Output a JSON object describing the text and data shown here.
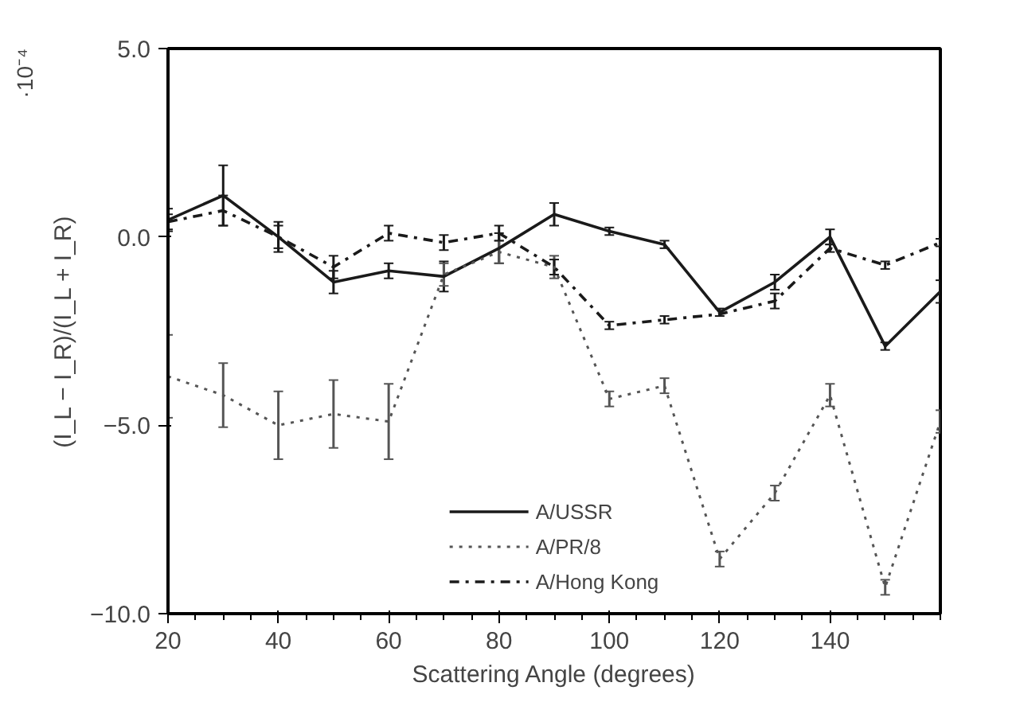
{
  "chart_data": {
    "type": "line",
    "xlabel": "Scattering Angle (degrees)",
    "ylabel": "(I_L − I_R)/(I_L + I_R)",
    "annotations": [
      "·10⁻⁴"
    ],
    "x": [
      20,
      30,
      40,
      50,
      60,
      70,
      80,
      90,
      100,
      110,
      120,
      130,
      140,
      150,
      160
    ],
    "xlim": [
      20,
      160
    ],
    "xticks": [
      20,
      40,
      60,
      80,
      100,
      120,
      140
    ],
    "ylim": [
      -10,
      5
    ],
    "yticks": [
      {
        "value": 5,
        "label": "5.0"
      },
      {
        "value": 0,
        "label": "0.0"
      },
      {
        "value": -5,
        "label": "−5.0"
      },
      {
        "value": -10,
        "label": "−10.0"
      }
    ],
    "grid": false,
    "legend": "bottom",
    "marker": "none",
    "series": [
      {
        "name": "A/USSR",
        "color": "#1a1a1a",
        "line_style": "solid",
        "values": [
          0.45,
          1.1,
          0.0,
          -1.2,
          -0.9,
          -1.05,
          -0.3,
          0.6,
          0.15,
          -0.2,
          -2.0,
          -1.2,
          0.0,
          -2.9,
          -1.45
        ],
        "errors": [
          0.3,
          0.8,
          0.4,
          0.3,
          0.2,
          0.4,
          0.4,
          0.3,
          0.1,
          0.1,
          0.1,
          0.2,
          0.2,
          0.1,
          0.3
        ]
      },
      {
        "name": "A/PR/8",
        "color": "#555555",
        "line_style": "dotted",
        "values": [
          -3.7,
          -4.2,
          -5.0,
          -4.7,
          -4.9,
          -1.0,
          -0.4,
          -0.8,
          -4.3,
          -3.95,
          -8.55,
          -6.8,
          -4.2,
          -9.3,
          -4.9
        ],
        "errors": [
          1.1,
          0.85,
          0.9,
          0.9,
          1.0,
          0.3,
          0.3,
          0.3,
          0.2,
          0.2,
          0.2,
          0.2,
          0.3,
          0.2,
          0.3
        ]
      },
      {
        "name": "A/Hong Kong",
        "color": "#1a1a1a",
        "line_style": "dashdot",
        "values": [
          0.4,
          0.7,
          0.0,
          -0.8,
          0.1,
          -0.15,
          0.1,
          -0.8,
          -2.35,
          -2.2,
          -2.05,
          -1.7,
          -0.3,
          -0.75,
          -0.15
        ],
        "errors": [
          0.2,
          0.4,
          0.3,
          0.3,
          0.2,
          0.2,
          0.2,
          0.2,
          0.1,
          0.1,
          null,
          0.2,
          0.1,
          0.1,
          0.1
        ]
      }
    ]
  }
}
